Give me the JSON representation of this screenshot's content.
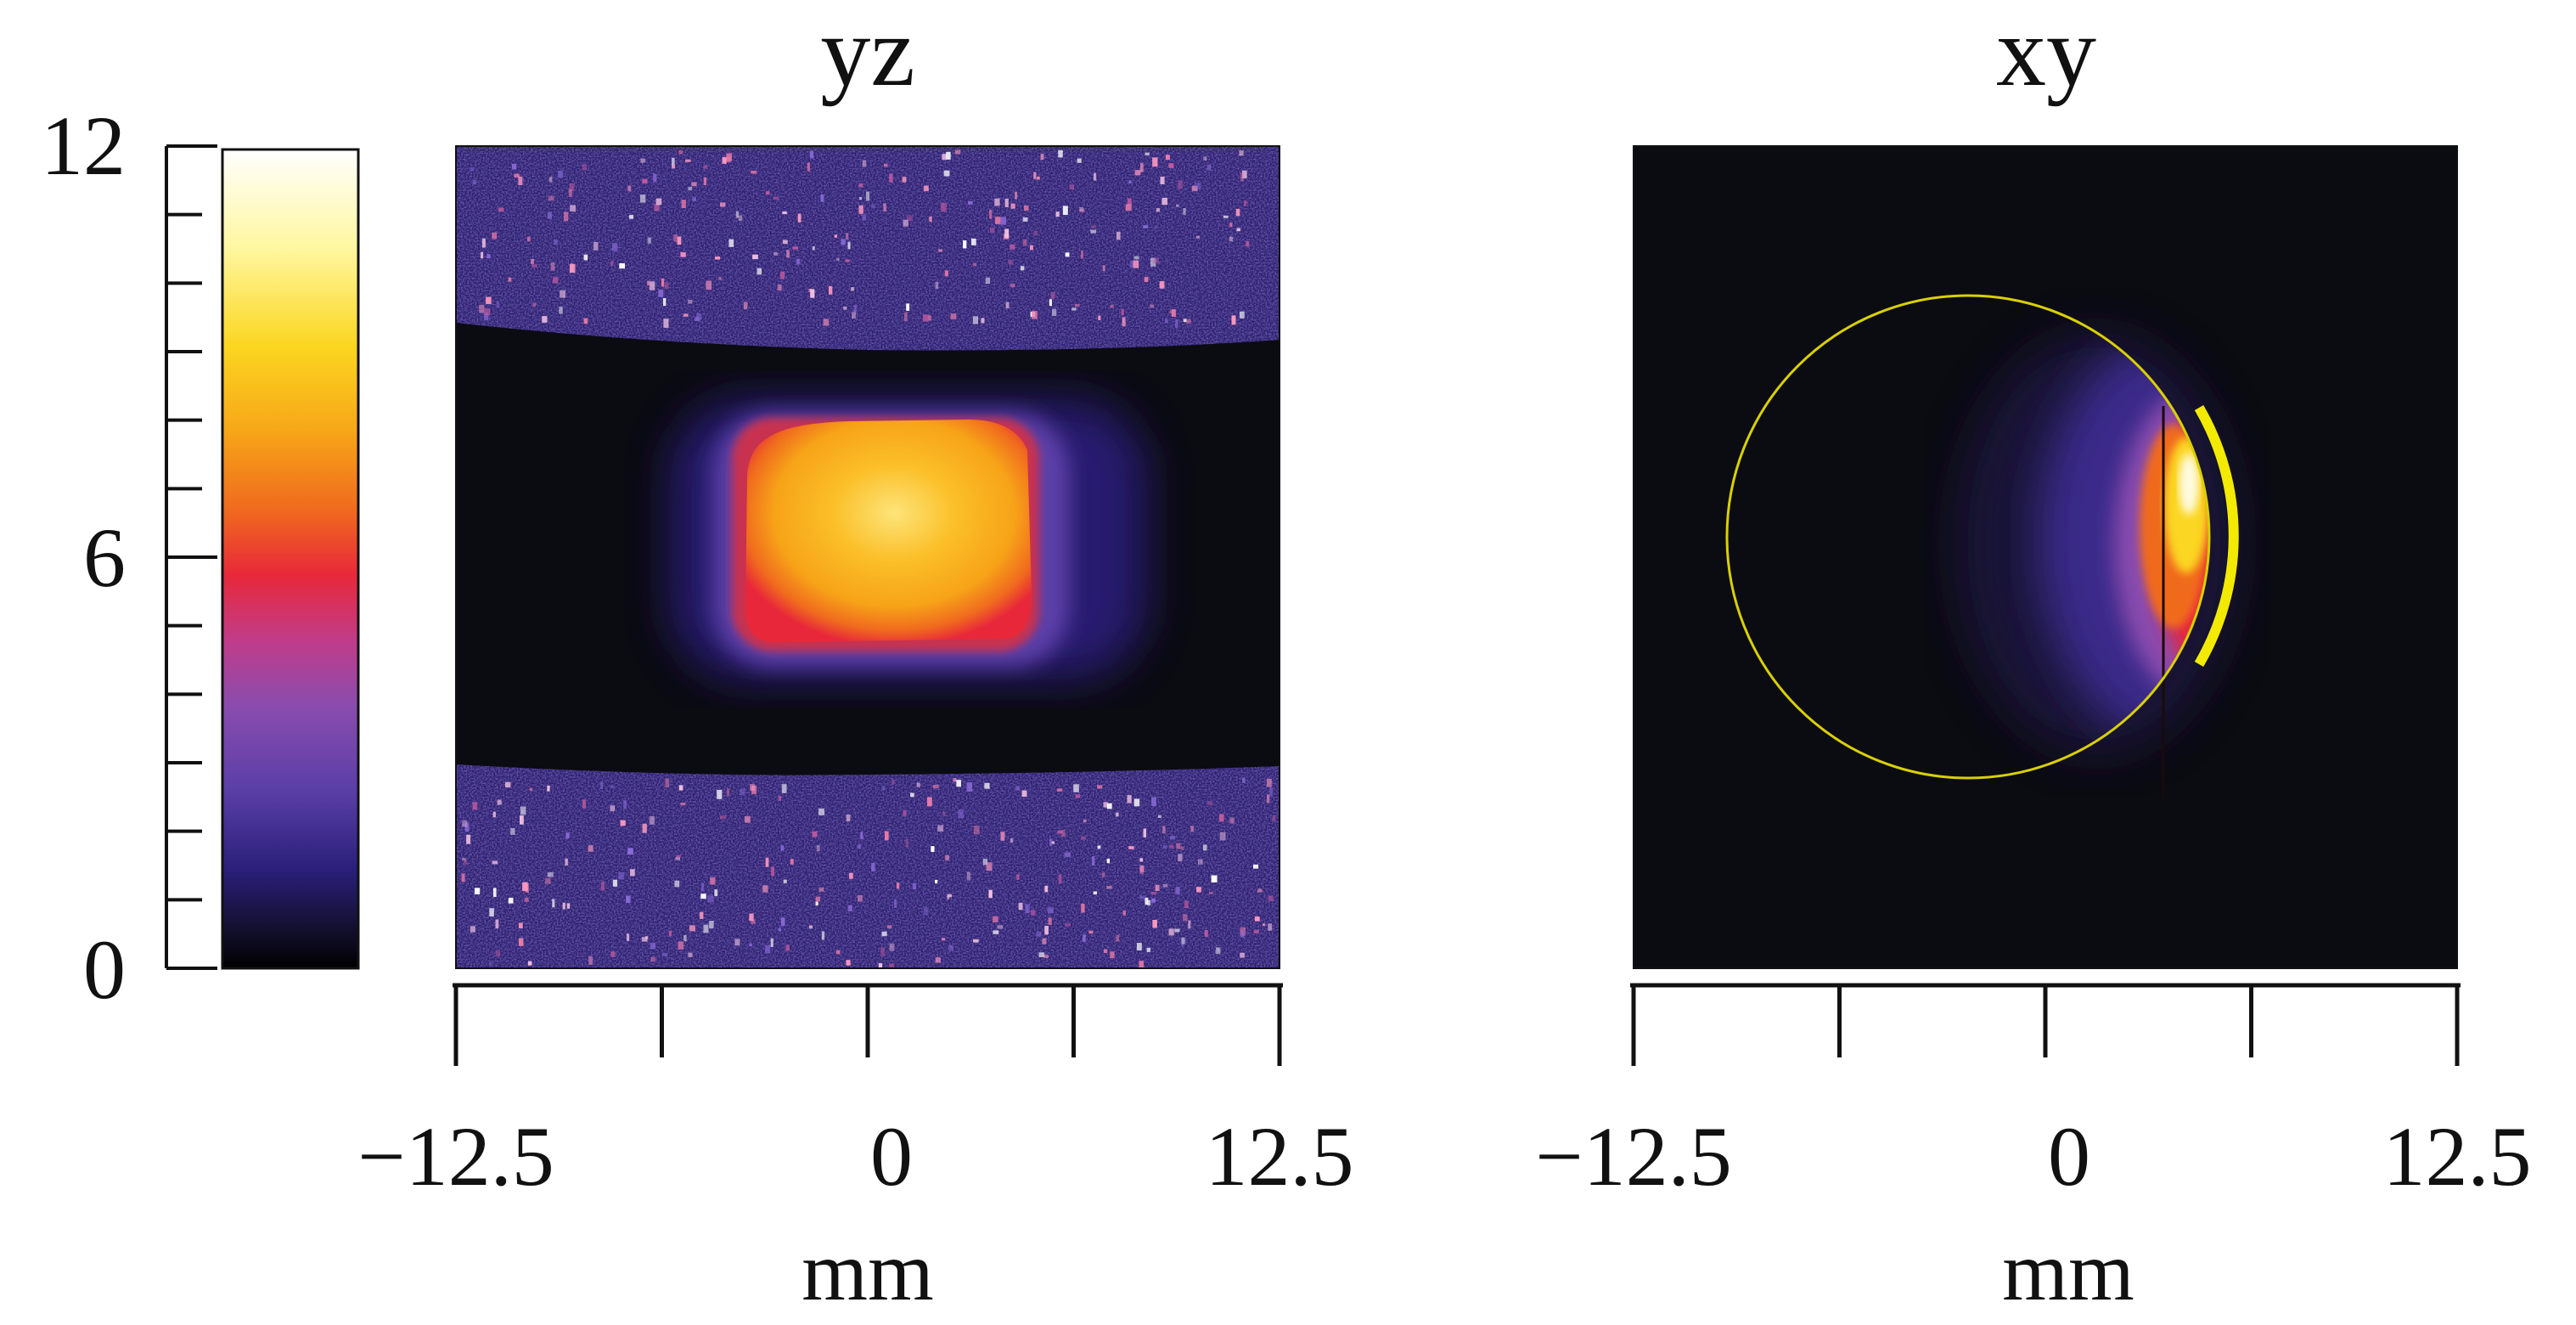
{
  "chart_data": [
    {
      "type": "heatmap",
      "title": "yz",
      "xlabel": "mm",
      "x_ticks": [
        "−12.5",
        "0",
        "12.5"
      ],
      "xlim": [
        -12.5,
        12.5
      ],
      "colorbar": {
        "range": [
          0,
          12
        ],
        "ticks": [
          "0",
          "6",
          "12"
        ],
        "colormap": [
          "#000000",
          "#141030",
          "#2a1f7a",
          "#5b3fa8",
          "#8a4cae",
          "#c03c8a",
          "#e8283a",
          "#f06a1e",
          "#f7a818",
          "#fbd620",
          "#fff7a0",
          "#ffffff"
        ]
      },
      "features": {
        "background": "#0b0b12",
        "noise_band_color": "#3a2a8a",
        "core_value_max": 10,
        "core_x_range": [
          -4,
          4
        ]
      }
    },
    {
      "type": "heatmap",
      "title": "xy",
      "xlabel": "mm",
      "x_ticks": [
        "−12.5",
        "0",
        "12.5"
      ],
      "xlim": [
        -12.5,
        12.5
      ],
      "features": {
        "background": "#0b0b12",
        "outline_circle_color": "#d9d000",
        "arc_marker_color": "#f2ea00",
        "hot_edge_x_range": [
          1,
          4.5
        ]
      }
    }
  ]
}
